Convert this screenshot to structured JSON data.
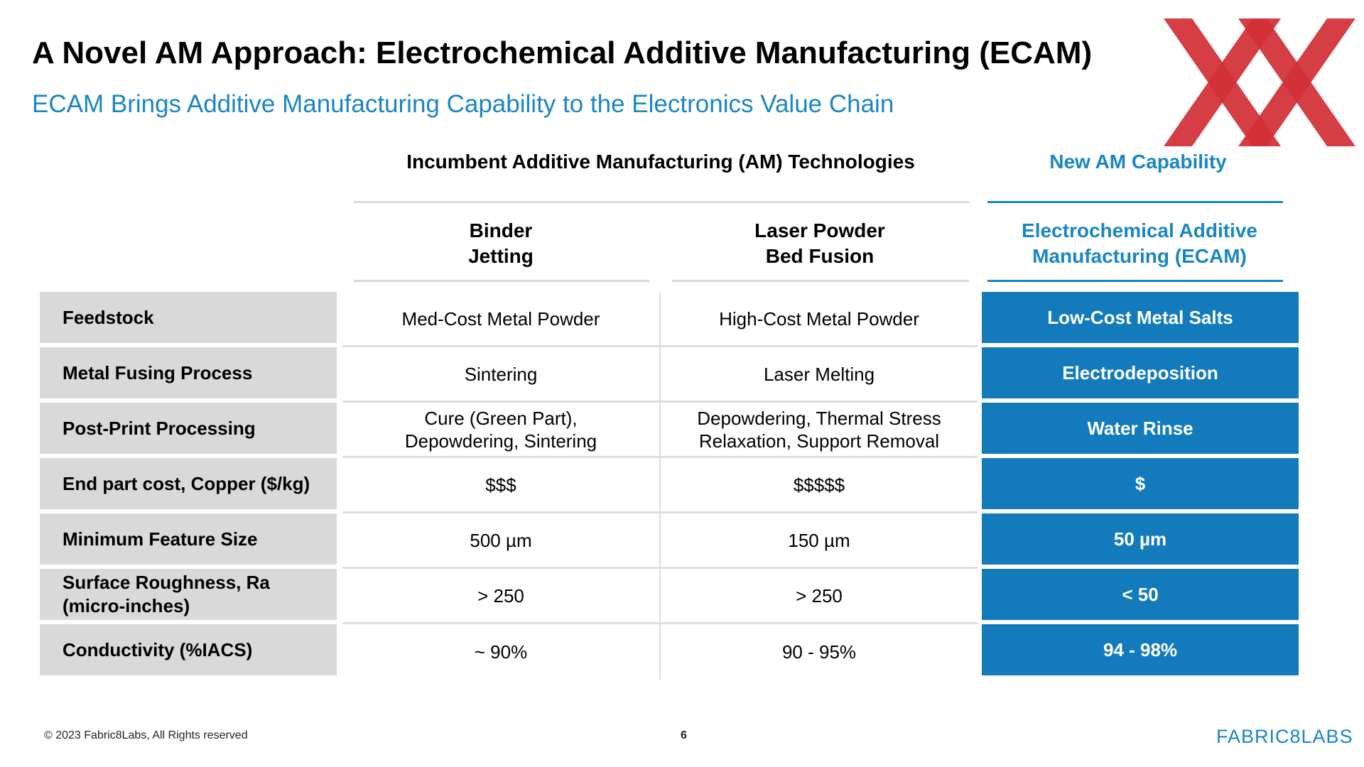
{
  "header": {
    "title": "A Novel AM Approach: Electrochemical Additive Manufacturing (ECAM)",
    "subtitle": "ECAM Brings Additive Manufacturing Capability to the Electronics Value Chain"
  },
  "colors": {
    "accent_blue": "#1a86c3",
    "cell_blue": "#137bbc",
    "label_gray": "#d9d9d9",
    "logo_red": "#d12f36"
  },
  "table": {
    "group_incumbent": "Incumbent Additive Manufacturing (AM) Technologies",
    "group_new": "New AM Capability",
    "columns": [
      "Binder\nJetting",
      "Laser Powder\nBed Fusion",
      "Electrochemical Additive\nManufacturing (ECAM)"
    ],
    "rows": [
      {
        "label": "Feedstock",
        "binder": "Med-Cost Metal Powder",
        "laser": "High-Cost Metal Powder",
        "ecam": "Low-Cost Metal Salts"
      },
      {
        "label": "Metal Fusing Process",
        "binder": "Sintering",
        "laser": "Laser Melting",
        "ecam": "Electrodeposition"
      },
      {
        "label": "Post-Print Processing",
        "binder": "Cure (Green Part),\nDepowdering, Sintering",
        "laser": "Depowdering, Thermal Stress\nRelaxation, Support Removal",
        "ecam": "Water Rinse"
      },
      {
        "label": "End part cost, Copper ($/kg)",
        "binder": "$$$",
        "laser": "$$$$$",
        "ecam": "$"
      },
      {
        "label": "Minimum Feature Size",
        "binder": "500 µm",
        "laser": "150 µm",
        "ecam": "50 µm"
      },
      {
        "label": "Surface Roughness, Ra\n(micro-inches)",
        "binder": "> 250",
        "laser": "> 250",
        "ecam": "< 50"
      },
      {
        "label": "Conductivity (%IACS)",
        "binder": "~ 90%",
        "laser": "90 - 95%",
        "ecam": "94 - 98%"
      }
    ]
  },
  "footer": {
    "copyright": "© 2023 Fabric8Labs, All Rights reserved",
    "page_number": "6",
    "logo_text": "FABRIC8LABS"
  },
  "icons": {
    "logo_mark": "double-x-logo-icon"
  }
}
